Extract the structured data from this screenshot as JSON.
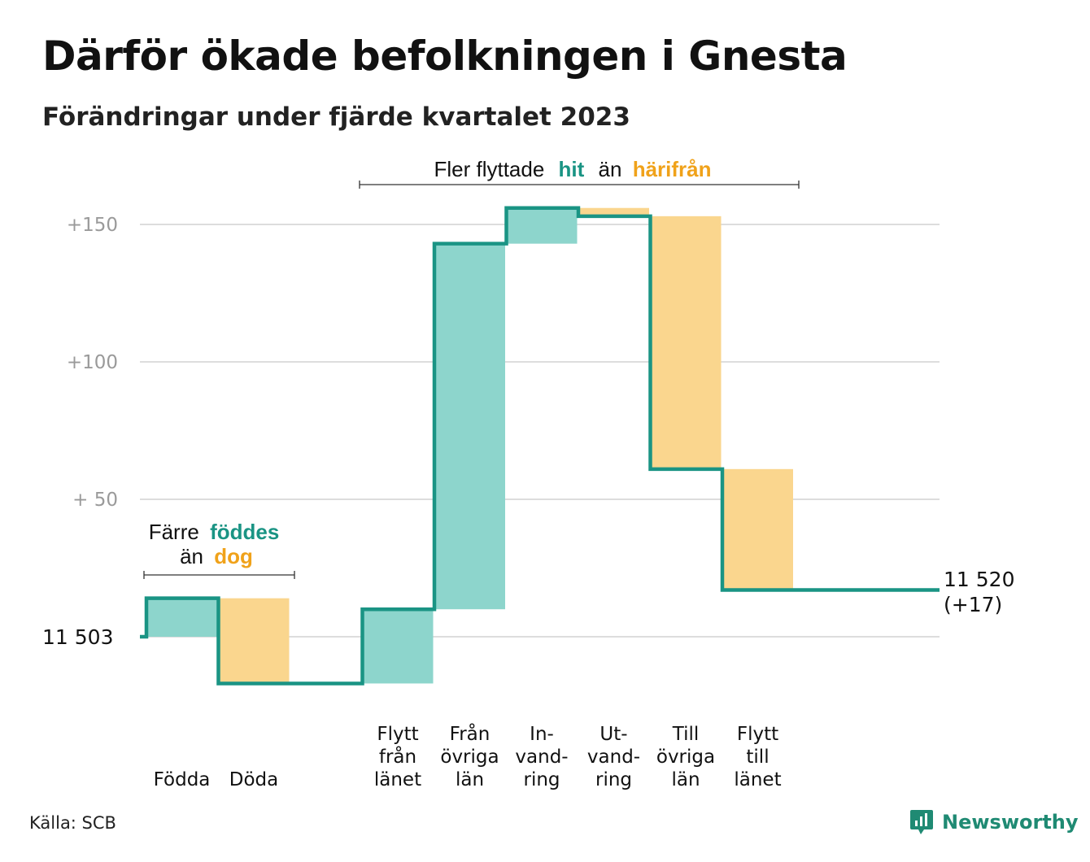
{
  "title": "Därför ökade befolkningen i Gnesta",
  "subtitle": "Förändringar under fjärde kvartalet 2023",
  "source": "Källa: SCB",
  "brand": "Newsworthy",
  "colors": {
    "increase": "#8dd5cc",
    "decrease": "#fad68e",
    "line": "#1a9484",
    "grid": "#dddddd",
    "tick": "#9a9a9a",
    "teal_text": "#1a9484",
    "orange_text": "#f0a21a"
  },
  "annotations": {
    "births": {
      "l1_a": "Färre",
      "l1_b": "föddes",
      "l2_a": "än",
      "l2_b": "dog"
    },
    "migration": {
      "a": "Fler flyttade",
      "b": "hit",
      "c": "än",
      "d": "härifrån"
    }
  },
  "end_label": {
    "line1": "11 520",
    "line2": "(+17)"
  },
  "chart_data": {
    "type": "waterfall",
    "title": "Därför ökade befolkningen i Gnesta",
    "subtitle": "Förändringar under fjärde kvartalet 2023",
    "start_value": 11503,
    "start_label": "11  503",
    "end_value": 11520,
    "end_change": 17,
    "ylim": [
      -20,
      160
    ],
    "y_ticks": [
      {
        "value": 150,
        "label": "+150"
      },
      {
        "value": 100,
        "label": "+100"
      },
      {
        "value": 50,
        "label": "+  50"
      },
      {
        "value": 0,
        "label": ""
      }
    ],
    "grid": true,
    "categories": [
      {
        "lines": [
          "Födda"
        ],
        "delta": 14,
        "kind": "increase"
      },
      {
        "lines": [
          "Döda"
        ],
        "delta": -31,
        "kind": "decrease"
      },
      {
        "lines": [
          ""
        ],
        "delta": 0,
        "kind": "gap"
      },
      {
        "lines": [
          "Flytt",
          "från",
          "länet"
        ],
        "delta": 27,
        "kind": "increase"
      },
      {
        "lines": [
          "Från",
          "övriga",
          "län"
        ],
        "delta": 133,
        "kind": "increase"
      },
      {
        "lines": [
          "In-",
          "vand-",
          "ring"
        ],
        "delta": 13,
        "kind": "increase"
      },
      {
        "lines": [
          "Ut-",
          "vand-",
          "ring"
        ],
        "delta": -3,
        "kind": "decrease"
      },
      {
        "lines": [
          "Till",
          "övriga",
          "län"
        ],
        "delta": -92,
        "kind": "decrease"
      },
      {
        "lines": [
          "Flytt",
          "till",
          "länet"
        ],
        "delta": -44,
        "kind": "decrease"
      }
    ]
  }
}
